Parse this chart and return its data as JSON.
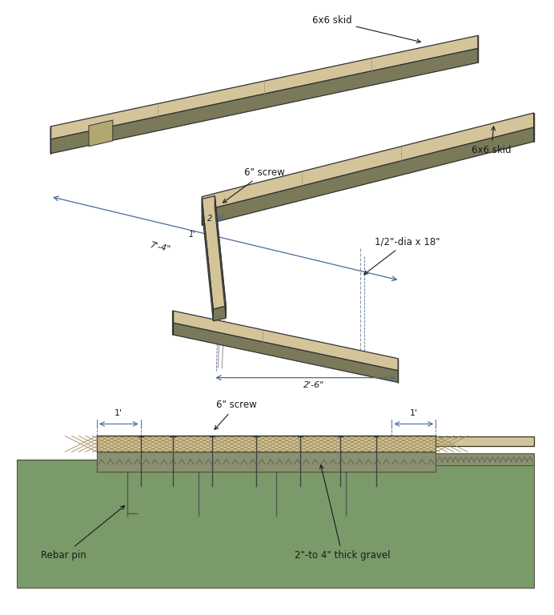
{
  "bg_color": "#ffffff",
  "wood_top_color": "#d4c49a",
  "wood_side_color": "#7a7a5a",
  "wood_end_color": "#8a8a6a",
  "gravel_color": "#8a9a80",
  "gravel_dark": "#6a7a60",
  "ground_color": "#7a9a6a",
  "dim_line_color": "#4a6a9a",
  "text_color": "#1a1a1a",
  "annot_color": "#1a1a1a",
  "labels": {
    "skid1": "6x6 skid",
    "skid2": "6x6 skid",
    "screw_top": "6\" screw",
    "screw_bot": "6\" screw",
    "rebar": "Rebar pin",
    "gravel": "2\"-to 4\" thick gravel",
    "rebar_dia": "1/2\"-dia x 18\"",
    "dim_74": "7'-4\"",
    "dim_26": "2'-6\"",
    "dim_1a": "1'",
    "dim_1b": "1'",
    "dim_2": "2",
    "dim_1c": "1'"
  }
}
